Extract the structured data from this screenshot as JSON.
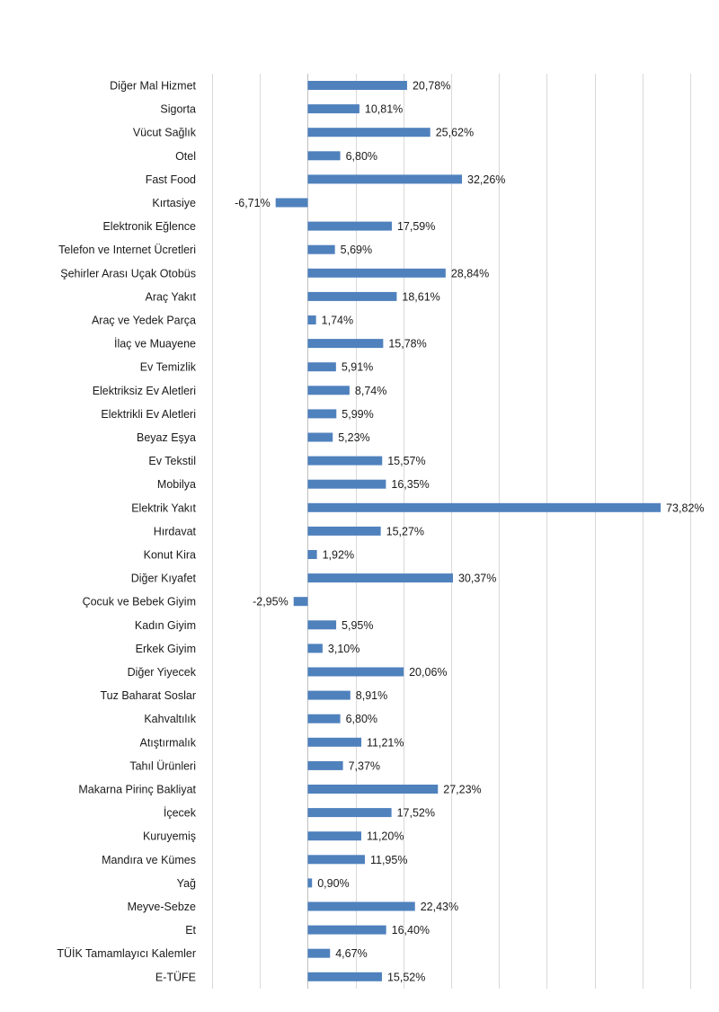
{
  "chart_data": {
    "type": "bar",
    "orientation": "horizontal",
    "categories": [
      "Diğer Mal Hizmet",
      "Sigorta",
      "Vücut Sağlık",
      "Otel",
      "Fast Food",
      "Kırtasiye",
      "Elektronik Eğlence",
      "Telefon ve Internet Ücretleri",
      "Şehirler Arası Uçak Otobüs",
      "Araç Yakıt",
      "Araç ve Yedek Parça",
      "İlaç ve Muayene",
      "Ev Temizlik",
      "Elektriksiz Ev Aletleri",
      "Elektrikli Ev Aletleri",
      "Beyaz Eşya",
      "Ev Tekstil",
      "Mobilya",
      "Elektrik Yakıt",
      "Hırdavat",
      "Konut Kira",
      "Diğer Kıyafet",
      "Çocuk ve Bebek Giyim",
      "Kadın Giyim",
      "Erkek Giyim",
      "Diğer Yiyecek",
      "Tuz Baharat Soslar",
      "Kahvaltılık",
      "Atıştırmalık",
      "Tahıl Ürünleri",
      "Makarna Pirinç Bakliyat",
      "İçecek",
      "Kuruyemiş",
      "Mandıra ve Kümes",
      "Yağ",
      "Meyve-Sebze",
      "Et",
      "TÜİK Tamamlayıcı Kalemler",
      "E-TÜFE"
    ],
    "values": [
      20.78,
      10.81,
      25.62,
      6.8,
      32.26,
      -6.71,
      17.59,
      5.69,
      28.84,
      18.61,
      1.74,
      15.78,
      5.91,
      8.74,
      5.99,
      5.23,
      15.57,
      16.35,
      73.82,
      15.27,
      1.92,
      30.37,
      -2.95,
      5.95,
      3.1,
      20.06,
      8.91,
      6.8,
      11.21,
      7.37,
      27.23,
      17.52,
      11.2,
      11.95,
      0.9,
      22.43,
      16.4,
      4.67,
      15.52
    ],
    "value_labels": [
      "20,78%",
      "10,81%",
      "25,62%",
      "6,80%",
      "32,26%",
      "-6,71%",
      "17,59%",
      "5,69%",
      "28,84%",
      "18,61%",
      "1,74%",
      "15,78%",
      "5,91%",
      "8,74%",
      "5,99%",
      "5,23%",
      "15,57%",
      "16,35%",
      "73,82%",
      "15,27%",
      "1,92%",
      "30,37%",
      "-2,95%",
      "5,95%",
      "3,10%",
      "20,06%",
      "8,91%",
      "6,80%",
      "11,21%",
      "7,37%",
      "27,23%",
      "17,52%",
      "11,20%",
      "11,95%",
      "0,90%",
      "22,43%",
      "16,40%",
      "4,67%",
      "15,52%"
    ],
    "xlim": [
      -20,
      80
    ],
    "grid": true,
    "bar_color": "#4f81bd"
  }
}
